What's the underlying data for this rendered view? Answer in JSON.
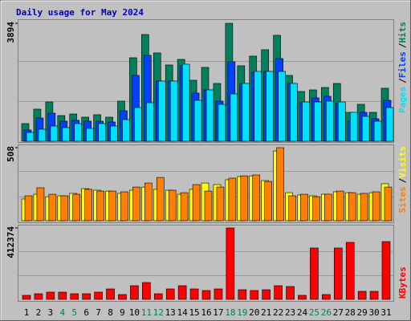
{
  "chart_data": [
    {
      "type": "bar",
      "title": "Daily usage for May 2024",
      "label_separator": "/",
      "ylim": [
        0,
        3894
      ],
      "yticks": [
        3894
      ],
      "series": [
        {
          "name": "Hits",
          "color": "#00805c",
          "values": [
            583,
            1060,
            1298,
            848,
            901,
            795,
            875,
            795,
            1325,
            2756,
            3524,
            2915,
            2518,
            2703,
            2014,
            2438,
            1908,
            3894,
            2491,
            2809,
            3021,
            3498,
            2173,
            1643,
            1696,
            1775,
            1908,
            954,
            1219,
            954,
            1749
          ]
        },
        {
          "name": "Files",
          "color": "#0040ff",
          "values": [
            371,
            768,
            927,
            662,
            689,
            662,
            662,
            636,
            1007,
            2173,
            2835,
            1987,
            1987,
            2491,
            1590,
            1696,
            1325,
            2623,
            1908,
            2279,
            2305,
            2729,
            1908,
            1272,
            1431,
            1484,
            1245,
            662,
            954,
            742,
            1351
          ]
        },
        {
          "name": "Pages",
          "color": "#00e0ff",
          "values": [
            291,
            397,
            503,
            450,
            583,
            424,
            583,
            503,
            715,
            1113,
            1272,
            1987,
            1987,
            2544,
            1351,
            1696,
            1219,
            1563,
            1908,
            2305,
            2305,
            2305,
            1908,
            1298,
            1298,
            1325,
            1298,
            954,
            821,
            662,
            1113
          ]
        }
      ]
    },
    {
      "type": "bar",
      "ylim": [
        0,
        508
      ],
      "yticks": [
        508
      ],
      "series": [
        {
          "name": "Visits",
          "color": "#ffff00",
          "values": [
            151,
            184,
            167,
            173,
            190,
            223,
            212,
            206,
            190,
            212,
            234,
            218,
            212,
            184,
            218,
            262,
            251,
            285,
            307,
            312,
            279,
            485,
            195,
            179,
            173,
            184,
            201,
            195,
            184,
            195,
            257
          ]
        },
        {
          "name": "Sites",
          "color": "#ff8000",
          "values": [
            173,
            229,
            184,
            173,
            184,
            218,
            206,
            206,
            201,
            234,
            262,
            301,
            212,
            195,
            251,
            206,
            234,
            296,
            312,
            318,
            273,
            508,
            173,
            184,
            167,
            184,
            206,
            195,
            190,
            201,
            234
          ]
        }
      ]
    },
    {
      "type": "bar",
      "ylim": [
        0,
        412374
      ],
      "yticks": [
        412374
      ],
      "categories": [
        "1",
        "2",
        "3",
        "4",
        "5",
        "6",
        "7",
        "8",
        "9",
        "10",
        "11",
        "12",
        "13",
        "14",
        "15",
        "16",
        "17",
        "18",
        "19",
        "20",
        "21",
        "22",
        "23",
        "24",
        "25",
        "26",
        "27",
        "28",
        "29",
        "30",
        "31"
      ],
      "category_colors": [
        "#000000",
        "#000000",
        "#000000",
        "#00805c",
        "#00805c",
        "#000000",
        "#000000",
        "#000000",
        "#000000",
        "#000000",
        "#00805c",
        "#00805c",
        "#000000",
        "#000000",
        "#000000",
        "#000000",
        "#000000",
        "#00805c",
        "#00805c",
        "#000000",
        "#000000",
        "#000000",
        "#000000",
        "#000000",
        "#00805c",
        "#00805c",
        "#000000",
        "#000000",
        "#000000",
        "#000000",
        "#000000"
      ],
      "series": [
        {
          "name": "KBytes",
          "color": "#ff0000",
          "values": [
            23165,
            32431,
            41697,
            41697,
            32431,
            32431,
            41697,
            60229,
            27798,
            78761,
            97293,
            32431,
            60229,
            78761,
            60229,
            50963,
            60229,
            412374,
            55596,
            50963,
            55596,
            78761,
            74128,
            23165,
            296512,
            27798,
            296512,
            328943,
            46330,
            46330,
            333576
          ]
        }
      ]
    }
  ]
}
